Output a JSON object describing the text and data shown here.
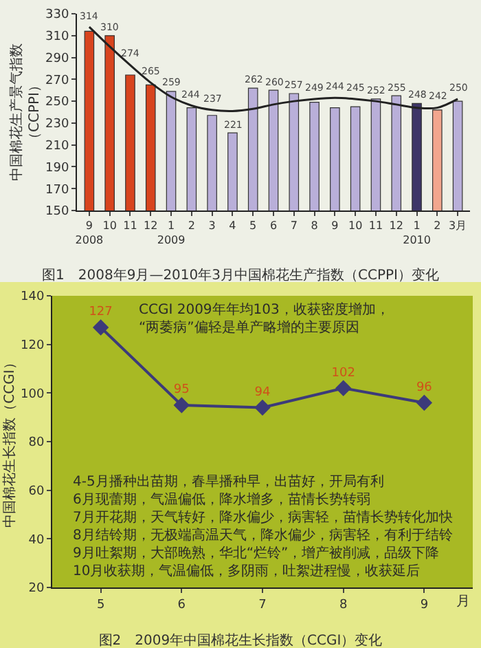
{
  "chart_data": [
    {
      "type": "bar",
      "title": "图1　2008年9月—2010年3月中国棉花生产指数（CCPPI）变化",
      "ylabel": "中国棉花生产景气指数（CCPPI）",
      "categories": [
        "9\n2008",
        "10",
        "11",
        "12",
        "1\n2009",
        "2",
        "3",
        "4",
        "5",
        "6",
        "7",
        "8",
        "9",
        "10",
        "11",
        "12",
        "1\n2010",
        "2",
        "3月"
      ],
      "series": [
        {
          "type": "bar",
          "colors": [
            "#d8441e",
            "#d8441e",
            "#d8441e",
            "#d8441e",
            "#b9afd9",
            "#b9afd9",
            "#b9afd9",
            "#b9afd9",
            "#b9afd9",
            "#b9afd9",
            "#b9afd9",
            "#b9afd9",
            "#b9afd9",
            "#b9afd9",
            "#b9afd9",
            "#b9afd9",
            "#3e3668",
            "#f2a68e",
            "#b9afd9"
          ],
          "values": [
            314,
            310,
            274,
            265,
            259,
            244,
            237,
            221,
            262,
            260,
            257,
            249,
            244,
            245,
            252,
            255,
            248,
            242,
            250
          ],
          "value_labels": [
            "314",
            "310",
            "274",
            "265",
            "259",
            "244",
            "237",
            "221",
            "262",
            "260",
            "257",
            "249",
            "244",
            "245",
            "252",
            "255",
            "248",
            "242",
            "250"
          ]
        },
        {
          "type": "line",
          "color": "#222222",
          "values": [
            318,
            300,
            283,
            267,
            254,
            246,
            242,
            241,
            243,
            247,
            250,
            252,
            253,
            252,
            250,
            247,
            244,
            244,
            252
          ]
        }
      ],
      "ylim": [
        150,
        330
      ],
      "yticks": [
        150,
        170,
        190,
        210,
        230,
        250,
        270,
        290,
        310,
        330
      ],
      "grid": false
    },
    {
      "type": "line",
      "title": "图2　2009年中国棉花生长指数（CCGI）变化",
      "ylabel": "中国棉花生长指数（CCGI）",
      "xlabel": "月",
      "categories": [
        "5",
        "6",
        "7",
        "8",
        "9"
      ],
      "values": [
        127,
        95,
        94,
        102,
        96
      ],
      "color": "#3c3a7a",
      "marker": "diamond",
      "data_labels": true,
      "ylim": [
        20,
        140
      ],
      "yticks": [
        20,
        40,
        60,
        80,
        100,
        120,
        140
      ],
      "grid": false,
      "annotations": [
        "CCGI 2009年年均103，收获密度增加，\n“两萎病”偏轻是单产略增的主要原因",
        "4-5月播种出苗期，春旱播种早，出苗好，开局有利\n6月现蕾期，气温偏低，降水增多，苗情长势转弱\n7月开花期，天气转好，降水偏少，病害轻，苗情长势转化加快\n8月结铃期，无极端高温天气，降水偏少，病害轻，有利于结铃\n9月吐絮期，大部晚熟，华北“烂铃”，增产被削减，品级下降\n10月收获期，气温偏低，多阴雨，吐絮进程慢，收获延后"
      ]
    }
  ]
}
